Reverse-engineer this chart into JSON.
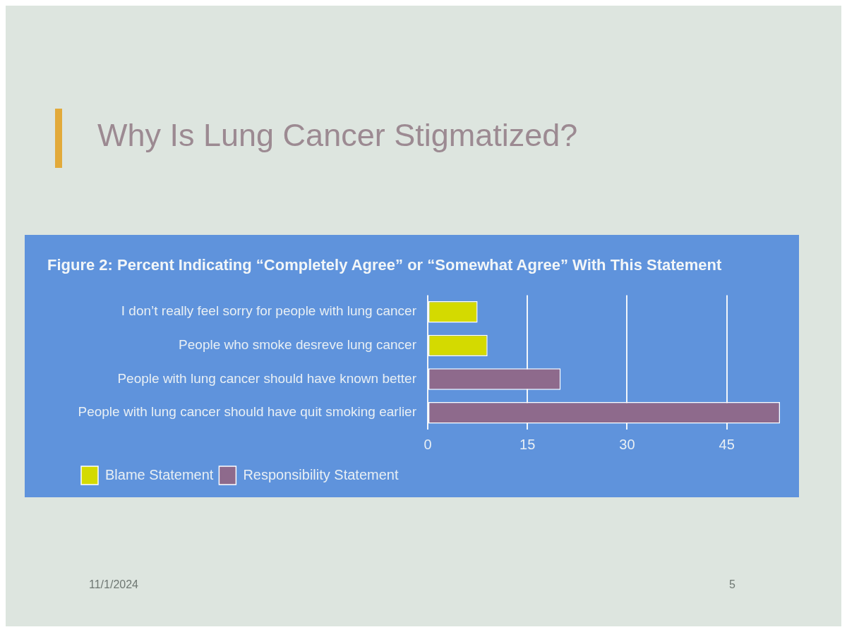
{
  "chart_data": {
    "type": "bar",
    "orientation": "horizontal",
    "title": "Why Is Lung Cancer Stigmatized?",
    "subtitle": "Figure 2: Percent Indicating “Completely Agree” or “Somewhat Agree” With This Statement",
    "categories": [
      "I don’t really feel sorry for people with lung cancer",
      "People who smoke desreve lung cancer",
      "People with lung cancer should have known better",
      "People with lung cancer should have quit smoking earlier"
    ],
    "series": [
      {
        "name": "Blame Statement",
        "color": "#d4da00",
        "values": [
          7.5,
          9,
          null,
          null
        ]
      },
      {
        "name": "Responsibility Statement",
        "color": "#8e6a8c",
        "values": [
          null,
          null,
          20,
          53
        ]
      }
    ],
    "xlim": [
      0,
      53
    ],
    "xticks": [
      0,
      15,
      30,
      45
    ],
    "grid": "x",
    "legend": "bottom left",
    "annotations": [
      "11/1/2024",
      "5"
    ]
  }
}
